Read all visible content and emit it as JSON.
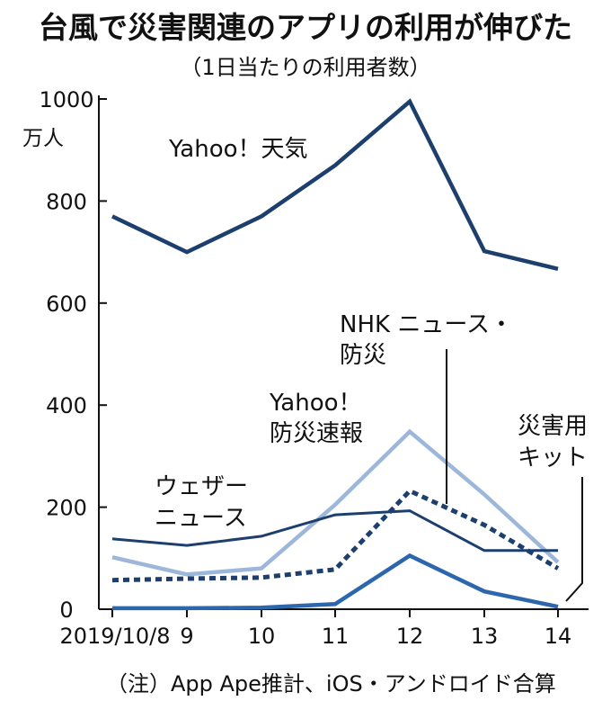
{
  "chart_data": {
    "type": "line",
    "title": "台風で災害関連のアプリの利用が伸びた",
    "subtitle": "（1日当たりの利用者数）",
    "ylabel": "万人",
    "ylim": [
      0,
      1000
    ],
    "yticks": [
      0,
      200,
      400,
      600,
      800,
      1000
    ],
    "categories": [
      "2019/10/8",
      "9",
      "10",
      "11",
      "12",
      "13",
      "14"
    ],
    "grid": false,
    "note": "（注）App Ape推計、iOS・アンドロイド合算",
    "series": [
      {
        "name": "Yahoo！天気",
        "label_lines": [
          "Yahoo！天気"
        ],
        "values": [
          770,
          700,
          770,
          870,
          995,
          702,
          667
        ],
        "color": "#1d3f6e",
        "style": "solid-thick"
      },
      {
        "name": "Yahoo！防災速報",
        "label_lines": [
          "Yahoo！",
          "防災速報"
        ],
        "values": [
          102,
          68,
          80,
          205,
          348,
          225,
          92
        ],
        "color": "#9db7da",
        "style": "solid-thick"
      },
      {
        "name": "NHK ニュース・防災",
        "label_lines": [
          "NHK  ニュース・",
          "防災"
        ],
        "values": [
          57,
          60,
          62,
          78,
          232,
          165,
          80
        ],
        "color": "#1d3f6e",
        "style": "dashed"
      },
      {
        "name": "ウェザーニュース",
        "label_lines": [
          "ウェザー",
          "ニュース"
        ],
        "values": [
          138,
          125,
          143,
          185,
          193,
          115,
          115
        ],
        "color": "#1d3f6e",
        "style": "solid-thin"
      },
      {
        "name": "災害用キット",
        "label_lines": [
          "災害用",
          "キット"
        ],
        "values": [
          2,
          2,
          3,
          10,
          105,
          35,
          5
        ],
        "color": "#2c67ad",
        "style": "solid-thick"
      }
    ]
  }
}
